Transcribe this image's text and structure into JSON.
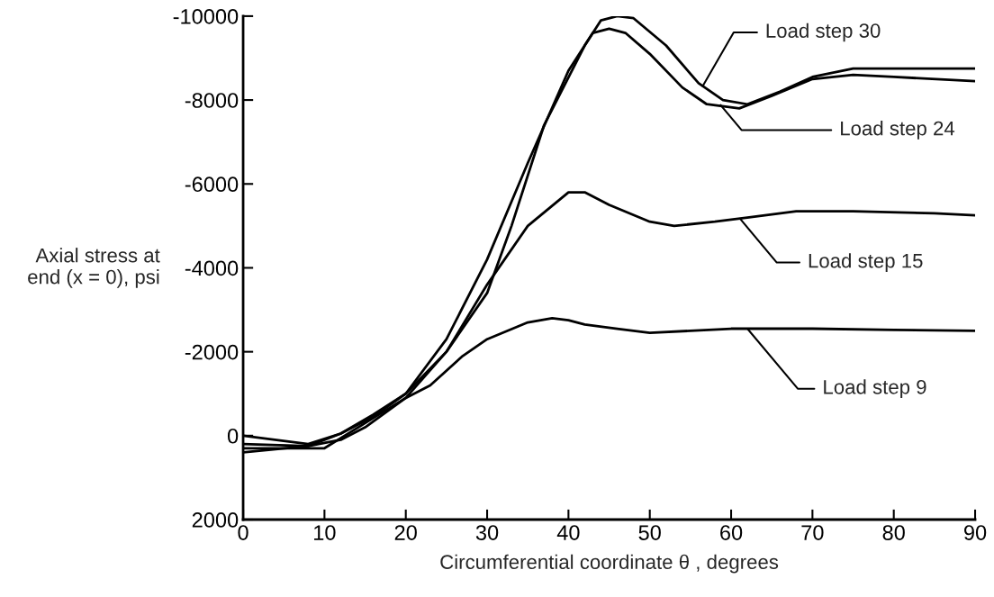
{
  "chart_data": {
    "type": "line",
    "xlabel": "Circumferential coordinate θ , degrees",
    "ylabel": "Axial stress at\nend (x = 0), psi",
    "xlim": [
      0,
      90
    ],
    "xticks": [
      0,
      10,
      20,
      30,
      40,
      50,
      60,
      70,
      80,
      90
    ],
    "ylim": [
      2000,
      -10000
    ],
    "yticks": [
      -10000,
      -8000,
      -6000,
      -4000,
      -2000,
      0,
      2000
    ],
    "grid": false,
    "legend": false,
    "series": [
      {
        "color": "#000000",
        "x": [
          0,
          5,
          10,
          15,
          20,
          23,
          27,
          30,
          35,
          38,
          40,
          42,
          46,
          50,
          55,
          60,
          70,
          80,
          90
        ],
        "values": [
          300,
          300,
          300,
          -300,
          -900,
          -1200,
          -1900,
          -2300,
          -2700,
          -2800,
          -2750,
          -2650,
          -2550,
          -2450,
          -2500,
          -2550,
          -2550,
          -2520,
          -2500
        ]
      },
      {
        "color": "#000000",
        "x": [
          0,
          8,
          12,
          15,
          20,
          25,
          30,
          35,
          40,
          42,
          45,
          50,
          53,
          58,
          62,
          68,
          75,
          85,
          90
        ],
        "values": [
          200,
          250,
          100,
          -200,
          -900,
          -2000,
          -3600,
          -5000,
          -5800,
          -5800,
          -5500,
          -5100,
          -5000,
          -5100,
          -5200,
          -5350,
          -5350,
          -5300,
          -5250
        ]
      },
      {
        "color": "#000000",
        "x": [
          0,
          8,
          12,
          16,
          20,
          25,
          30,
          35,
          40,
          43,
          45,
          47,
          50,
          54,
          57,
          61,
          65,
          70,
          75,
          80,
          90
        ],
        "values": [
          0,
          200,
          -50,
          -450,
          -1000,
          -2300,
          -4200,
          -6500,
          -8700,
          -9600,
          -9700,
          -9600,
          -9100,
          -8300,
          -7900,
          -7800,
          -8100,
          -8500,
          -8600,
          -8550,
          -8450
        ]
      },
      {
        "color": "#000000",
        "x": [
          0,
          8,
          12,
          16,
          20,
          25,
          30,
          33,
          37,
          42,
          44,
          46,
          48,
          52,
          56,
          59,
          62,
          66,
          70,
          75,
          80,
          90
        ],
        "values": [
          400,
          250,
          -50,
          -500,
          -1000,
          -2000,
          -3400,
          -5000,
          -7400,
          -9300,
          -9900,
          -10000,
          -9950,
          -9300,
          -8400,
          -8000,
          -7900,
          -8200,
          -8550,
          -8750,
          -8750,
          -8750
        ]
      }
    ],
    "annotations": [
      {
        "text": "Load step 30",
        "x": 56.5,
        "y": -8330
      },
      {
        "text": "Load step 24",
        "x": 58.7,
        "y": -7880
      },
      {
        "text": "Load step 15",
        "x": 61.1,
        "y": -5170
      },
      {
        "text": "Load step 9",
        "x": 62,
        "y": -2550
      }
    ]
  }
}
